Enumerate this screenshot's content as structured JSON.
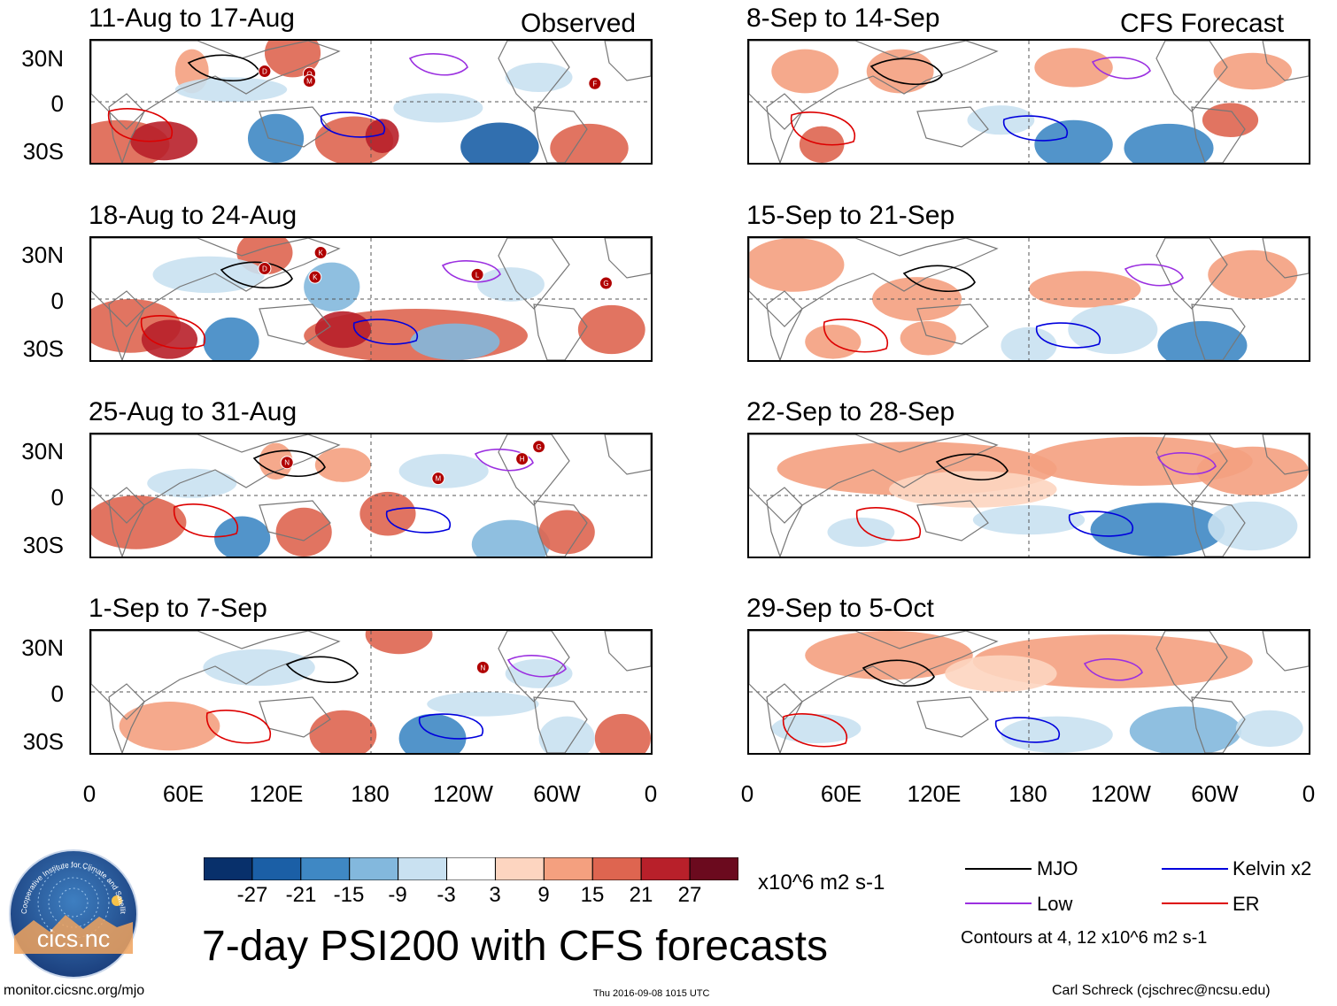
{
  "chart_data": {
    "type": "heatmap",
    "title": "7-day PSI200 with CFS forecasts",
    "units": "x10^6 m2 s-1",
    "observed_label": "Observed",
    "forecast_label": "CFS Forecast",
    "lat_ticks": [
      "30N",
      "0",
      "30S"
    ],
    "lon_ticks": [
      "0",
      "60E",
      "120E",
      "180",
      "120W",
      "60W",
      "0"
    ],
    "lat_range": [
      -40,
      40
    ],
    "lon_range": [
      0,
      360
    ],
    "observed_panels": [
      {
        "period": "11-Aug to 17-Aug",
        "storm_markers": [
          "D",
          "O",
          "M",
          "F"
        ]
      },
      {
        "period": "18-Aug to 24-Aug",
        "storm_markers": [
          "K",
          "D",
          "K",
          "L",
          "G"
        ]
      },
      {
        "period": "25-Aug to 31-Aug",
        "storm_markers": [
          "N",
          "M",
          "H",
          "G"
        ]
      },
      {
        "period": "1-Sep to 7-Sep",
        "storm_markers": [
          "N"
        ]
      }
    ],
    "forecast_panels": [
      {
        "period": "8-Sep to 14-Sep"
      },
      {
        "period": "15-Sep to 21-Sep"
      },
      {
        "period": "22-Sep to 28-Sep"
      },
      {
        "period": "29-Sep to 5-Oct"
      }
    ],
    "colorbar": {
      "levels": [
        "-27",
        "-21",
        "-15",
        "-9",
        "-3",
        "3",
        "9",
        "15",
        "21",
        "27"
      ],
      "colors": [
        "#08306b",
        "#1b5fa6",
        "#3f88c4",
        "#83b8dd",
        "#c9e1f1",
        "#ffffff",
        "#fdd5c0",
        "#f4a07f",
        "#de6550",
        "#b8202a",
        "#6b0a1e"
      ]
    },
    "legend": [
      {
        "label": "MJO",
        "color": "#000000"
      },
      {
        "label": "Kelvin x2",
        "color": "#0000dd"
      },
      {
        "label": "Low",
        "color": "#9b30e0"
      },
      {
        "label": "ER",
        "color": "#dd0000"
      }
    ],
    "contour_note": "Contours at 4, 12 x10^6 m2 s-1"
  },
  "logo": {
    "text": "cics.nc",
    "ring_text": "Cooperative Institute for Climate and Satellites"
  },
  "footer": {
    "url": "monitor.cicsnc.org/mjo",
    "timestamp": "Thu 2016-09-08 1015 UTC",
    "author": "Carl Schreck (cjschrec@ncsu.edu)"
  }
}
